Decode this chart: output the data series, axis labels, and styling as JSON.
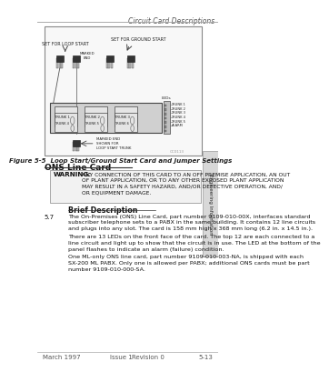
{
  "bg_color": "#ffffff",
  "header_text": "Circuit Card Descriptions",
  "footer_left": "March 1997",
  "footer_mid1": "Issue 1",
  "footer_mid2": "Revision 0",
  "footer_right": "5-13",
  "figure_caption": "Figure 5-5  Loop Start/Ground Start Card and Jumper Settings",
  "section_title": "ONS Line Card",
  "warning_label": "WARNING:",
  "warning_text": "ANY CONNECTION OF THIS CARD TO AN OFF PREMISE APPLICATION, AN OUT\nOF PLANT APPLICATION, OR TO ANY OTHER EXPOSED PLANT APPLICATION\nMAY RESULT IN A SAFETY HAZARD, AND/OR DEFECTIVE OPERATION, AND/\nOR EQUIPMENT DAMAGE.",
  "brief_desc_title": "Brief Description",
  "para_57_num": "5.7",
  "para_57_text": "The On-Premises (ONS) Line Card, part number 9109-010-00X, interfaces standard\nsubscriber telephone sets to a PABX in the same building. It contains 12 line circuits\nand plugs into any slot. The card is 158 mm high x 368 mm long (6.2 in. x 14.5 in.).",
  "para_led_text": "There are 13 LEDs on the front face of the card. The top 12 are each connected to a\nline circuit and light up to show that the circuit is in use. The LED at the bottom of the\npanel flashes to indicate an alarm (failure) condition.",
  "para_ml_text": "One ML-only ONS line card, part number 9109-010-003-NA, is shipped with each\nSX-200 ML PABX. Only one is allowed per PABX; additional ONS cards must be part\nnumber 9109-010-000-SA.",
  "sidebar_text": "Engineering Information",
  "set_loop_label": "SET FOR LOOP START",
  "set_ground_label": "SET FOR GROUND START",
  "leds_label": "LEDs",
  "marked_end_label1": "MARKED END\nSHOWN FOR\nLOOP START TRUNK",
  "trunk_labels": [
    "TRUNK 1",
    "TRUNK 2",
    "TRUNK 3",
    "TRUNK 4",
    "TRUNK 5",
    "ALARM"
  ],
  "cc_label": "CC0113"
}
